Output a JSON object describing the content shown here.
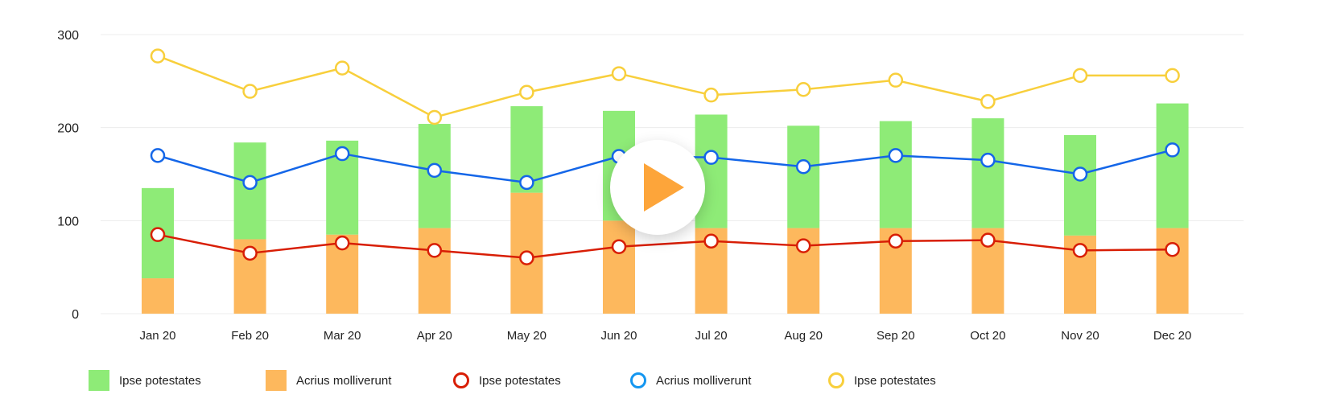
{
  "chart_data": {
    "type": "bar",
    "categories": [
      "Jan 20",
      "Feb 20",
      "Mar 20",
      "Apr 20",
      "May 20",
      "Jun 20",
      "Jul 20",
      "Aug 20",
      "Sep 20",
      "Oct 20",
      "Nov 20",
      "Dec 20"
    ],
    "ylim": [
      0,
      300
    ],
    "yticks": [
      0,
      100,
      200,
      300
    ],
    "grid": true,
    "legend_position": "bottom-left",
    "stacked_bars": [
      {
        "name": "Acrius molliverunt",
        "color": "#FDB85D",
        "values": [
          38,
          80,
          85,
          92,
          130,
          100,
          92,
          92,
          92,
          92,
          84,
          92
        ]
      },
      {
        "name": "Ipse potestates",
        "color": "#8EEB77",
        "values": [
          97,
          104,
          101,
          112,
          93,
          118,
          122,
          110,
          115,
          118,
          108,
          134
        ]
      }
    ],
    "line_series": [
      {
        "name": "Ipse potestates",
        "color": "#D81E05",
        "values": [
          85,
          65,
          76,
          68,
          60,
          72,
          78,
          73,
          78,
          79,
          68,
          69
        ]
      },
      {
        "name": "Acrius molliverunt",
        "color": "#1466E8",
        "values": [
          170,
          141,
          172,
          154,
          141,
          169,
          168,
          158,
          170,
          165,
          150,
          176
        ]
      },
      {
        "name": "Ipse potestates",
        "color": "#F8CF3C",
        "values": [
          277,
          239,
          264,
          211,
          238,
          258,
          235,
          241,
          251,
          228,
          256,
          256
        ]
      }
    ]
  },
  "legend": [
    {
      "label": "Ipse potestates",
      "kind": "square",
      "color": "#8EEB77"
    },
    {
      "label": "Acrius molliverunt",
      "kind": "square",
      "color": "#FDB85D"
    },
    {
      "label": "Ipse potestates",
      "kind": "ring",
      "color": "#D81E05"
    },
    {
      "label": "Acrius molliverunt",
      "kind": "ring",
      "color": "#1496F0"
    },
    {
      "label": "Ipse potestates",
      "kind": "ring",
      "color": "#F8CF3C"
    }
  ],
  "play_button": {
    "icon": "play-icon",
    "color": "#FDA53A"
  }
}
